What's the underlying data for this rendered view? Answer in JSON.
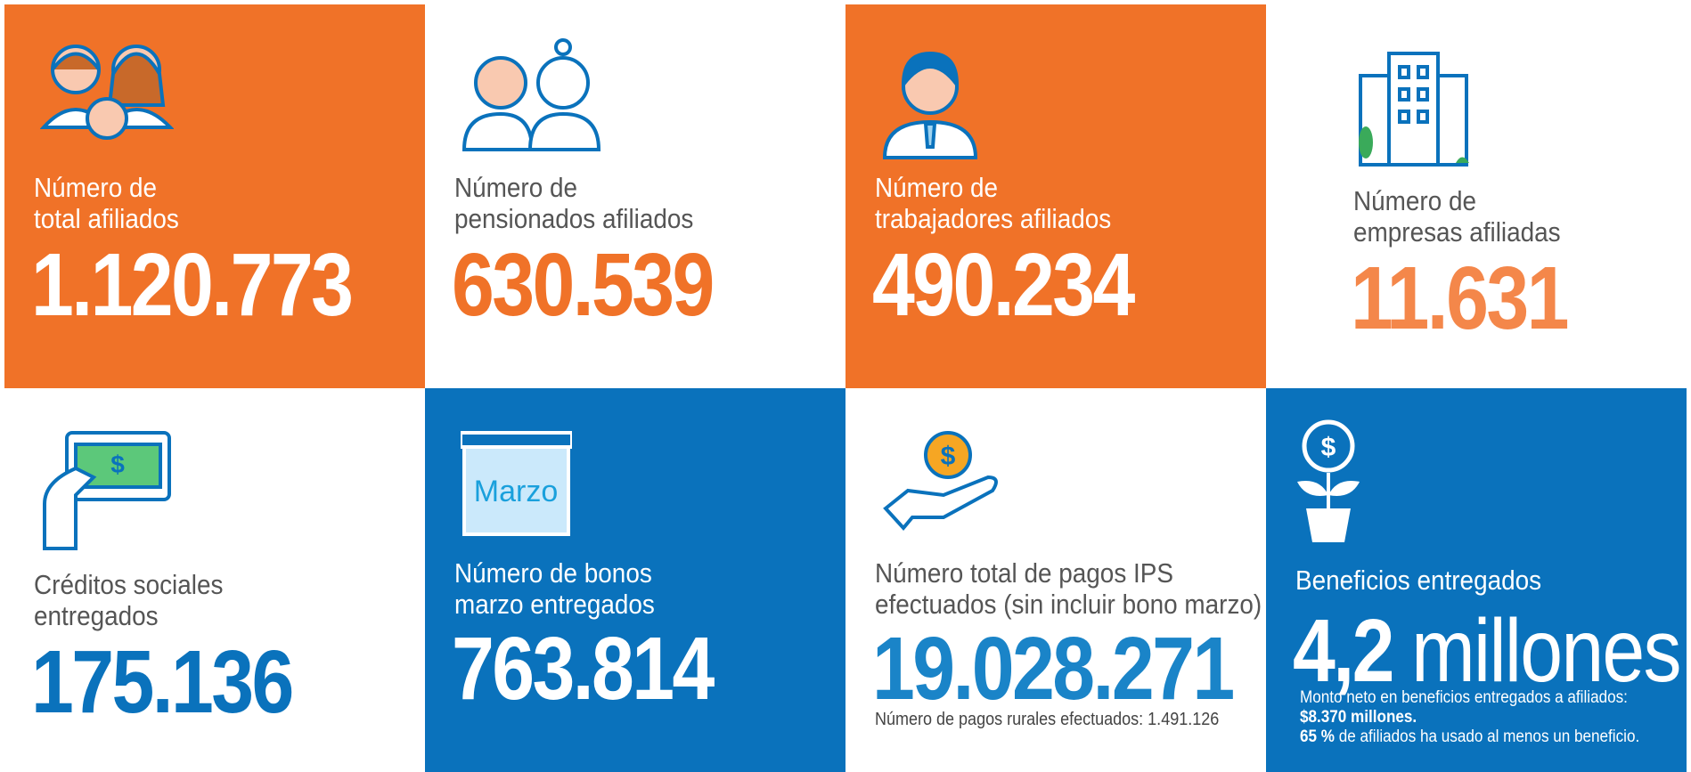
{
  "tiles": [
    {
      "label": [
        "Número de",
        "total afiliados"
      ],
      "value": "1.120.773"
    },
    {
      "label": [
        "Número de",
        "pensionados afiliados"
      ],
      "value": "630.539"
    },
    {
      "label": [
        "Número de",
        "trabajadores afiliados"
      ],
      "value": "490.234"
    },
    {
      "label": [
        "Número de",
        "empresas afiliadas"
      ],
      "value": "11.631"
    },
    {
      "label": [
        "Créditos sociales",
        "entregados"
      ],
      "value": "175.136"
    },
    {
      "label": [
        "Número de bonos",
        "marzo entregados"
      ],
      "value": "763.814",
      "icon_text": "Marzo"
    },
    {
      "label": [
        "Número total de pagos IPS",
        "efectuados (sin incluir bono marzo)"
      ],
      "value": "19.028.271",
      "note": "Número de pagos rurales efectuados: 1.491.126"
    },
    {
      "label": [
        "Beneficios entregados"
      ],
      "value": "4,2",
      "unit": "millones",
      "notes": [
        "Monto neto en beneficios entregados a afiliados:",
        "$8.370 millones.",
        "65 %",
        "de afiliados ha usado al menos un beneficio."
      ]
    }
  ]
}
